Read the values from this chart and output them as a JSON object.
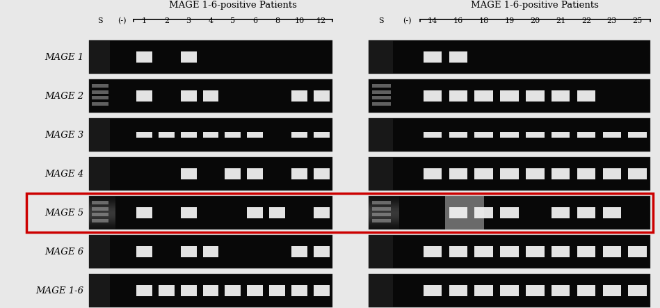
{
  "panel1_header": "MAGE 1-6-positive Patients",
  "panel2_header": "MAGE 1-6-positive Patients",
  "col_labels_left": [
    "S",
    "(-)",
    "1",
    "2",
    "3",
    "4",
    "5",
    "6",
    "8",
    "10",
    "12"
  ],
  "col_labels_right": [
    "S",
    "(-)",
    "14",
    "16",
    "18",
    "19",
    "20",
    "21",
    "22",
    "23",
    "25"
  ],
  "row_labels": [
    "MAGE 1",
    "MAGE 2",
    "MAGE 3",
    "MAGE 4",
    "MAGE 5",
    "MAGE 6",
    "MAGE 1-6"
  ],
  "highlight_row": 4,
  "highlight_color": "#cc0000",
  "background_color": "#e8e8e8",
  "gel_bg": "#080808",
  "band_white": "#f0f0f0",
  "band_gray": "#aaaaaa",
  "row_configs_left": {
    "MAGE 1": {
      "bands": [
        2,
        4
      ],
      "smear_s": false,
      "thin": false
    },
    "MAGE 2": {
      "bands": [
        2,
        4,
        5,
        9,
        10
      ],
      "smear_s": true,
      "thin": false
    },
    "MAGE 3": {
      "bands": [
        2,
        3,
        4,
        5,
        6,
        7,
        9,
        10
      ],
      "smear_s": false,
      "thin": true
    },
    "MAGE 4": {
      "bands": [
        4,
        6,
        7,
        9,
        10
      ],
      "smear_s": false,
      "thin": false
    },
    "MAGE 5": {
      "bands": [
        2,
        4,
        7,
        8,
        10
      ],
      "smear_s": true,
      "thin": false
    },
    "MAGE 6": {
      "bands": [
        2,
        4,
        5,
        9,
        10
      ],
      "smear_s": false,
      "thin": false
    },
    "MAGE 1-6": {
      "bands": [
        2,
        3,
        4,
        5,
        6,
        7,
        8,
        9,
        10
      ],
      "smear_s": false,
      "thin": false
    }
  },
  "row_configs_right": {
    "MAGE 1": {
      "bands": [
        2,
        3
      ],
      "smear_s": false,
      "thin": false
    },
    "MAGE 2": {
      "bands": [
        2,
        3,
        4,
        5,
        6,
        7,
        8
      ],
      "smear_s": true,
      "thin": false
    },
    "MAGE 3": {
      "bands": [
        2,
        3,
        4,
        5,
        6,
        7,
        8,
        9,
        10
      ],
      "smear_s": false,
      "thin": true
    },
    "MAGE 4": {
      "bands": [
        2,
        3,
        4,
        5,
        6,
        7,
        8,
        9,
        10
      ],
      "smear_s": false,
      "thin": false
    },
    "MAGE 5": {
      "bands": [
        3,
        4,
        5,
        7,
        8,
        9
      ],
      "smear_s": true,
      "thin": false
    },
    "MAGE 6": {
      "bands": [
        2,
        3,
        4,
        5,
        6,
        7,
        8,
        9,
        10
      ],
      "smear_s": false,
      "thin": false
    },
    "MAGE 1-6": {
      "bands": [
        2,
        3,
        4,
        5,
        6,
        7,
        8,
        9,
        10
      ],
      "smear_s": false,
      "thin": false
    }
  }
}
